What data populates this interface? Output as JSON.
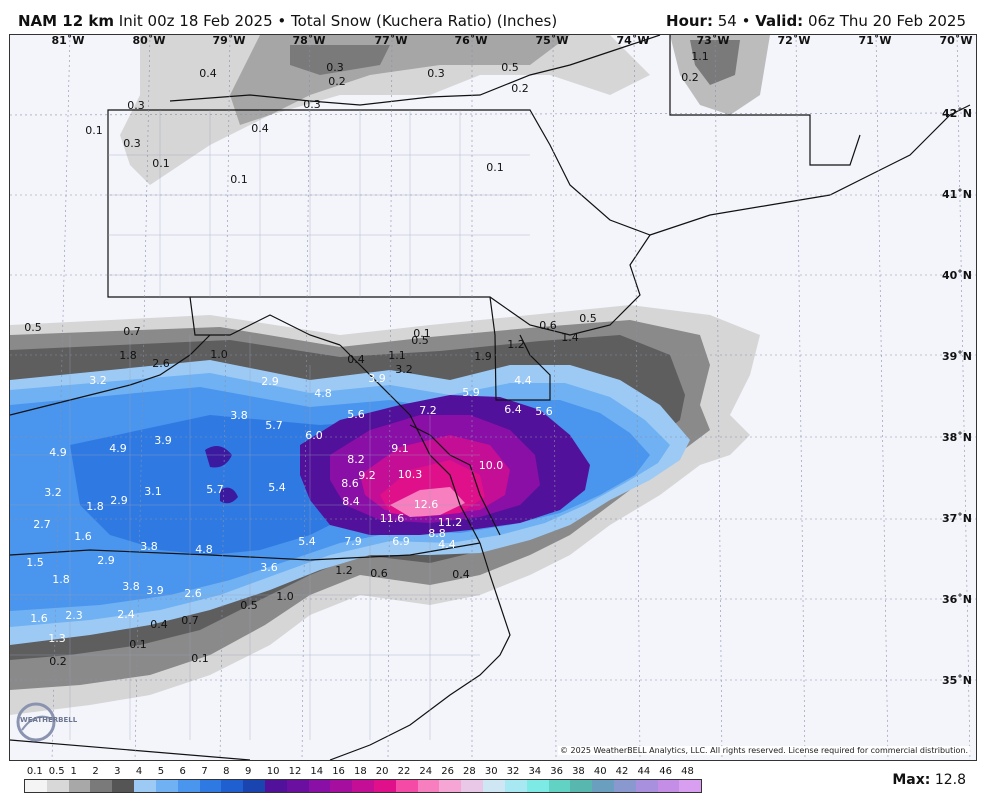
{
  "header": {
    "model": "NAM 12 km",
    "init": "Init 00z 18 Feb 2025 • Total Snow (Kuchera Ratio) (Inches)",
    "hour_label": "Hour:",
    "hour_value": "54",
    "valid_label": "Valid:",
    "valid_value": "06z Thu 20 Feb 2025"
  },
  "map": {
    "longitude_labels": [
      "81˚W",
      "80˚W",
      "79˚W",
      "78˚W",
      "77˚W",
      "76˚W",
      "75˚W",
      "74˚W",
      "73˚W",
      "72˚W",
      "71˚W",
      "70˚W"
    ],
    "latitude_labels": [
      "42˚N",
      "41˚N",
      "40˚N",
      "39˚N",
      "38˚N",
      "37˚N",
      "36˚N",
      "35˚N"
    ],
    "snow_values": [
      "0.4",
      "0.3",
      "0.2",
      "0.3",
      "0.5",
      "0.2",
      "0.3",
      "1.1",
      "0.2",
      "0.3",
      "0.4",
      "0.1",
      "0.3",
      "0.1",
      "0.1",
      "0.1",
      "0.5",
      "0.7",
      "0.1",
      "0.5",
      "0.6",
      "0.5",
      "1.4",
      "1.2",
      "1.9",
      "1.8",
      "2.6",
      "1.0",
      "0.4",
      "1.1",
      "3.2",
      "2.9",
      "4.8",
      "3.9",
      "3.2",
      "5.9",
      "4.4",
      "6.4",
      "5.6",
      "7.2",
      "5.6",
      "3.8",
      "5.7",
      "6.0",
      "3.9",
      "4.9",
      "4.9",
      "8.2",
      "9.1",
      "9.2",
      "10.3",
      "10.0",
      "8.6",
      "5.7",
      "5.4",
      "3.1",
      "2.9",
      "3.2",
      "1.8",
      "8.4",
      "11.6",
      "12.6",
      "11.2",
      "2.7",
      "1.6",
      "3.8",
      "4.8",
      "5.4",
      "7.9",
      "6.9",
      "8.8",
      "4.4",
      "2.9",
      "3.6",
      "1.5",
      "1.8",
      "3.8",
      "3.9",
      "2.6",
      "1.0",
      "0.6",
      "0.4",
      "0.5",
      "1.6",
      "2.3",
      "2.4",
      "0.4",
      "0.7",
      "1.3",
      "0.1",
      "0.2",
      "0.1",
      "1.2"
    ]
  },
  "legend": {
    "ticks": [
      "0.1",
      "0.5",
      "1",
      "2",
      "3",
      "4",
      "5",
      "6",
      "7",
      "8",
      "9",
      "10",
      "12",
      "14",
      "16",
      "18",
      "20",
      "22",
      "24",
      "26",
      "28",
      "30",
      "32",
      "34",
      "36",
      "38",
      "40",
      "42",
      "44",
      "46",
      "48"
    ],
    "colors": [
      "#f4f4f4",
      "#d8d8d8",
      "#a8a8a8",
      "#7a7a7a",
      "#555555",
      "#9ccaf5",
      "#6fb1f2",
      "#4a95ee",
      "#2f7ae2",
      "#1f5fd0",
      "#1a45b0",
      "#52119a",
      "#6a0fa0",
      "#8a0fa6",
      "#a60ea0",
      "#c40e95",
      "#e0108a",
      "#f54aa5",
      "#f77fc0",
      "#f5a6d4",
      "#e8c8e6",
      "#cfe6f5",
      "#a8e8f2",
      "#7eeae6",
      "#62d2c4",
      "#58b8b0",
      "#6a9fc0",
      "#8a98d0",
      "#a890de",
      "#c48ee6",
      "#d89ef0"
    ],
    "max_label": "Max:",
    "max_value": "12.8"
  },
  "footer": {
    "copyright": "© 2025 WeatherBELL Analytics, LLC. All rights reserved. License required for commercial distribution.",
    "logo_text": "WEATHERBELL"
  },
  "colors": {
    "border": "#111111",
    "background": "#f4f5fb",
    "light_snow": "#d9d9d9",
    "heavy_snow": "#e0108a"
  }
}
